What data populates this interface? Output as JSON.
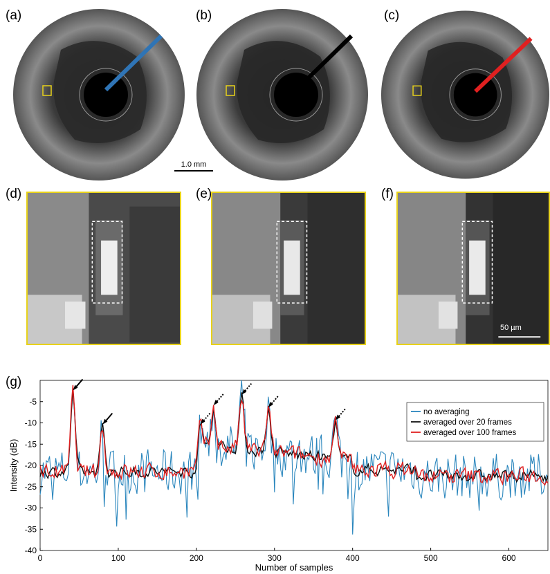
{
  "panels": {
    "a": "(a)",
    "b": "(b)",
    "c": "(c)",
    "d": "(d)",
    "e": "(e)",
    "f": "(f)",
    "g": "(g)"
  },
  "scalebars": {
    "oct": "1.0 mm",
    "zoom": "50 µm"
  },
  "colors": {
    "no_averaging": "#2a86bd",
    "avg20": "#111111",
    "avg100": "#e02020",
    "roi_box": "#e8d21a"
  },
  "chart_data": {
    "type": "line",
    "xlabel": "Number of samples",
    "ylabel": "Intensity (dB)",
    "xlim": [
      0,
      650
    ],
    "ylim": [
      -40,
      0
    ],
    "xticks": [
      0,
      100,
      200,
      300,
      400,
      500,
      600
    ],
    "yticks": [
      -40,
      -35,
      -30,
      -25,
      -20,
      -15,
      -10,
      -5
    ],
    "grid": false,
    "legend_position": "top-right",
    "series": [
      {
        "name": "no averaging",
        "color": "#2a86bd"
      },
      {
        "name": "averaged over 20 frames",
        "color": "#111111"
      },
      {
        "name": "averaged over 100 frames",
        "color": "#e02020"
      }
    ],
    "peaks": [
      {
        "x": 42,
        "y": -3,
        "arrow": "solid"
      },
      {
        "x": 80,
        "y": -11,
        "arrow": "solid"
      },
      {
        "x": 205,
        "y": -11,
        "arrow": "dotted"
      },
      {
        "x": 222,
        "y": -6.5,
        "arrow": "dotted"
      },
      {
        "x": 258,
        "y": -4,
        "arrow": "dotted"
      },
      {
        "x": 292,
        "y": -7,
        "arrow": "dotted"
      },
      {
        "x": 378,
        "y": -10,
        "arrow": "dotted"
      }
    ]
  }
}
